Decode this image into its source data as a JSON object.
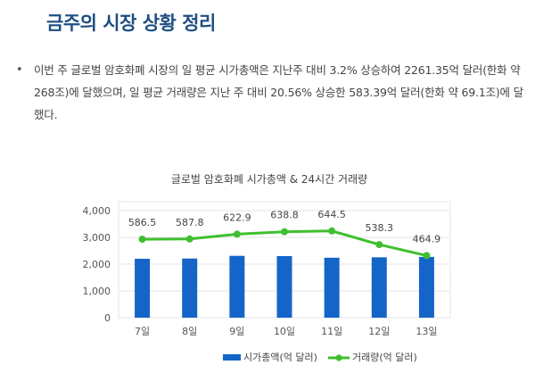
{
  "header": {
    "title": "금주의 시장 상황 정리"
  },
  "summary": {
    "bullet": "•",
    "text": "이번 주 글로벌 암호화폐 시장의 일 평균 시가총액은 지난주 대비 3.2% 상승하여 2261.35억 달러(한화 약 268조)에 달했으며, 일 평균 거래량은 지난 주 대비 20.56% 상승한 583.39억 달러(한화 약 69.1조)에 달했다."
  },
  "chart_data": {
    "type": "bar+line",
    "title": "글로벌 암호화폐 시가총액 & 24시간 거래량",
    "categories": [
      "7일",
      "8일",
      "9일",
      "10일",
      "11일",
      "12일",
      "13일"
    ],
    "ylim": [
      0,
      4000
    ],
    "yticks": [
      "4,000",
      "3,000",
      "2,000",
      "1,000",
      "0"
    ],
    "ytick_values": [
      4000,
      3000,
      2000,
      1000,
      0
    ],
    "grid": true,
    "legend_position": "bottom",
    "series": [
      {
        "name": "시가총액(억 달러)",
        "type": "bar",
        "color": "#1565c8",
        "values": [
          2200,
          2210,
          2310,
          2300,
          2240,
          2255,
          2270
        ]
      },
      {
        "name": "거래량(억 달러)",
        "type": "line",
        "color": "#3fbf2f",
        "values": [
          2930,
          2940,
          3120,
          3210,
          3240,
          2730,
          2320
        ],
        "labels": [
          "586.5",
          "587.8",
          "622.9",
          "638.8",
          "644.5",
          "538.3",
          "464.9"
        ]
      }
    ]
  }
}
